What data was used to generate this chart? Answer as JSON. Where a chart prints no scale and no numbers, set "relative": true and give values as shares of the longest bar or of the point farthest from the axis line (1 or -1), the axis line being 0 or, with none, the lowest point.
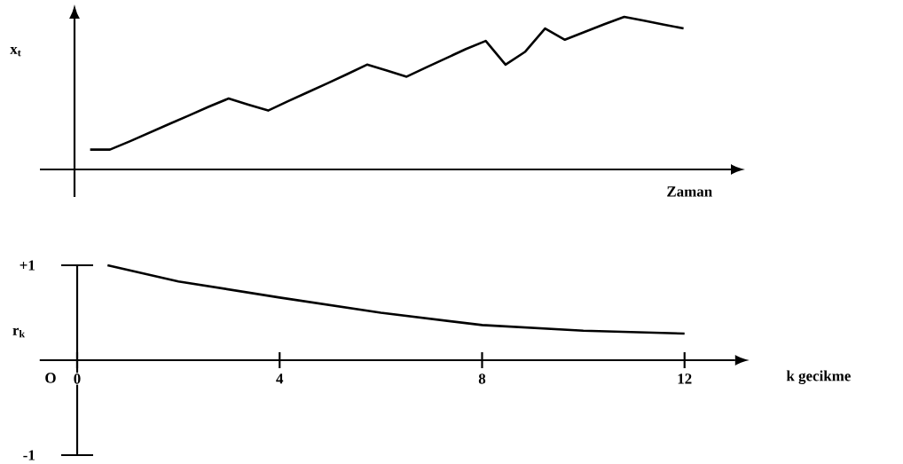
{
  "chart_data": [
    {
      "type": "line",
      "xlabel": "Zaman",
      "ylabel": "x$_{t}$",
      "relative": true,
      "color": "#000000",
      "categories": [
        null,
        null,
        null,
        null,
        null,
        null,
        null,
        null,
        null,
        null,
        null,
        null,
        null,
        null,
        null,
        null,
        null,
        null,
        null,
        null,
        null,
        null,
        null,
        null,
        null,
        null,
        null,
        null,
        null,
        null,
        null
      ],
      "values": [
        0.13,
        0.13,
        0.184,
        0.241,
        0.298,
        0.354,
        0.411,
        0.465,
        0.424,
        0.386,
        0.447,
        0.506,
        0.565,
        0.625,
        0.687,
        0.648,
        0.608,
        0.669,
        0.729,
        0.789,
        0.842,
        0.687,
        0.772,
        0.924,
        0.85,
        0.901,
        0.952,
        1,
        0.975,
        0.949,
        0.924
      ]
    },
    {
      "type": "line",
      "xlabel": "k  gecikme",
      "ylabel": "r$_{k}$",
      "color": "#000000",
      "annotations": [
        "O"
      ],
      "x": [
        0.6,
        2,
        4,
        6,
        8,
        10,
        12
      ],
      "values": [
        1.0,
        0.83,
        0.66,
        0.5,
        0.37,
        0.31,
        0.28
      ],
      "xlim": [
        -0.74,
        13.0
      ],
      "xticks": [
        0,
        4,
        8,
        12
      ],
      "ylim": [
        -1,
        1
      ],
      "yticks": [
        {
          "value": 1,
          "label": "+1"
        },
        {
          "value": -1,
          "label": "-1"
        }
      ]
    }
  ]
}
